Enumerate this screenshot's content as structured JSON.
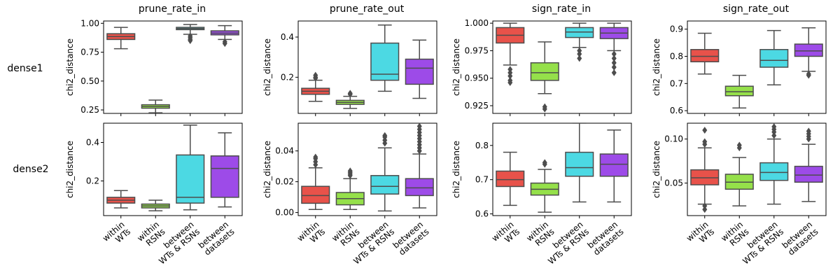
{
  "figure": {
    "row_labels": [
      "dense1",
      "dense2"
    ],
    "col_titles": [
      "prune_rate_in",
      "prune_rate_out",
      "sign_rate_in",
      "sign_rate_out"
    ],
    "ylabel": "chi2_distance",
    "categories": [
      [
        "within",
        "WTs"
      ],
      [
        "within",
        "RSNs"
      ],
      [
        "between",
        "WTs & RSNs"
      ],
      [
        "between",
        "datasets"
      ]
    ],
    "colors": [
      "#e8524a",
      "#95e04a",
      "#4cd9e3",
      "#9d4be8"
    ],
    "line_color": "#4d4d4d"
  },
  "chart_data": [
    {
      "type": "box",
      "row": "dense1",
      "col": "prune_rate_in",
      "ylim": [
        0.22,
        1.02
      ],
      "yticks": [
        0.25,
        0.5,
        0.75,
        1.0
      ],
      "yticklabels": [
        "0.25",
        "0.50",
        "0.75",
        "1.00"
      ],
      "boxes": [
        {
          "q1": 0.86,
          "median": 0.885,
          "q3": 0.91,
          "whislo": 0.78,
          "whishi": 0.965,
          "fliers": []
        },
        {
          "q1": 0.265,
          "median": 0.28,
          "q3": 0.295,
          "whislo": 0.225,
          "whishi": 0.335,
          "fliers": []
        },
        {
          "q1": 0.945,
          "median": 0.955,
          "q3": 0.965,
          "whislo": 0.905,
          "whishi": 0.99,
          "fliers": [
            0.89,
            0.875,
            0.86,
            0.85
          ]
        },
        {
          "q1": 0.9,
          "median": 0.915,
          "q3": 0.935,
          "whislo": 0.86,
          "whishi": 0.98,
          "fliers": [
            0.84,
            0.825
          ]
        }
      ]
    },
    {
      "type": "box",
      "row": "dense1",
      "col": "prune_rate_out",
      "ylim": [
        0.02,
        0.48
      ],
      "yticks": [
        0.2,
        0.4
      ],
      "yticklabels": [
        "0.2",
        "0.4"
      ],
      "boxes": [
        {
          "q1": 0.115,
          "median": 0.13,
          "q3": 0.145,
          "whislo": 0.08,
          "whishi": 0.185,
          "fliers": [
            0.195,
            0.2,
            0.21
          ]
        },
        {
          "q1": 0.065,
          "median": 0.075,
          "q3": 0.085,
          "whislo": 0.045,
          "whishi": 0.105,
          "fliers": [
            0.115,
            0.12
          ]
        },
        {
          "q1": 0.185,
          "median": 0.215,
          "q3": 0.37,
          "whislo": 0.13,
          "whishi": 0.46,
          "fliers": []
        },
        {
          "q1": 0.165,
          "median": 0.245,
          "q3": 0.29,
          "whislo": 0.095,
          "whishi": 0.385,
          "fliers": []
        }
      ]
    },
    {
      "type": "box",
      "row": "dense1",
      "col": "sign_rate_in",
      "ylim": [
        0.918,
        1.002
      ],
      "yticks": [
        0.925,
        0.95,
        0.975,
        1.0
      ],
      "yticklabels": [
        "0.925",
        "0.950",
        "0.975",
        "1.000"
      ],
      "boxes": [
        {
          "q1": 0.982,
          "median": 0.989,
          "q3": 0.996,
          "whislo": 0.962,
          "whishi": 1.0,
          "fliers": [
            0.958,
            0.955,
            0.952,
            0.948,
            0.946
          ]
        },
        {
          "q1": 0.948,
          "median": 0.955,
          "q3": 0.964,
          "whislo": 0.936,
          "whishi": 0.983,
          "fliers": [
            0.924,
            0.922
          ]
        },
        {
          "q1": 0.987,
          "median": 0.992,
          "q3": 0.996,
          "whislo": 0.978,
          "whishi": 1.0,
          "fliers": [
            0.975,
            0.972,
            0.968
          ]
        },
        {
          "q1": 0.986,
          "median": 0.991,
          "q3": 0.996,
          "whislo": 0.975,
          "whishi": 1.0,
          "fliers": [
            0.972,
            0.968,
            0.964,
            0.96,
            0.955
          ]
        }
      ]
    },
    {
      "type": "box",
      "row": "dense1",
      "col": "sign_rate_out",
      "ylim": [
        0.59,
        0.93
      ],
      "yticks": [
        0.6,
        0.7,
        0.8,
        0.9
      ],
      "yticklabels": [
        "0.6",
        "0.7",
        "0.8",
        "0.9"
      ],
      "boxes": [
        {
          "q1": 0.78,
          "median": 0.8,
          "q3": 0.825,
          "whislo": 0.735,
          "whishi": 0.885,
          "fliers": []
        },
        {
          "q1": 0.655,
          "median": 0.67,
          "q3": 0.69,
          "whislo": 0.61,
          "whishi": 0.73,
          "fliers": []
        },
        {
          "q1": 0.76,
          "median": 0.785,
          "q3": 0.825,
          "whislo": 0.695,
          "whishi": 0.895,
          "fliers": []
        },
        {
          "q1": 0.8,
          "median": 0.82,
          "q3": 0.845,
          "whislo": 0.745,
          "whishi": 0.905,
          "fliers": [
            0.735,
            0.73
          ]
        }
      ]
    },
    {
      "type": "box",
      "row": "dense2",
      "col": "prune_rate_in",
      "ylim": [
        0.02,
        0.5
      ],
      "yticks": [
        0.2,
        0.4
      ],
      "yticklabels": [
        "0.2",
        "0.4"
      ],
      "boxes": [
        {
          "q1": 0.085,
          "median": 0.1,
          "q3": 0.115,
          "whislo": 0.06,
          "whishi": 0.15,
          "fliers": []
        },
        {
          "q1": 0.06,
          "median": 0.07,
          "q3": 0.08,
          "whislo": 0.045,
          "whishi": 0.1,
          "fliers": []
        },
        {
          "q1": 0.085,
          "median": 0.115,
          "q3": 0.335,
          "whislo": 0.05,
          "whishi": 0.49,
          "fliers": []
        },
        {
          "q1": 0.115,
          "median": 0.265,
          "q3": 0.33,
          "whislo": 0.065,
          "whishi": 0.45,
          "fliers": []
        }
      ]
    },
    {
      "type": "box",
      "row": "dense2",
      "col": "prune_rate_out",
      "ylim": [
        -0.002,
        0.058
      ],
      "yticks": [
        0.0,
        0.02,
        0.04
      ],
      "yticklabels": [
        "0.00",
        "0.02",
        "0.04"
      ],
      "boxes": [
        {
          "q1": 0.006,
          "median": 0.011,
          "q3": 0.017,
          "whislo": 0.002,
          "whishi": 0.029,
          "fliers": [
            0.031,
            0.033,
            0.035,
            0.036
          ]
        },
        {
          "q1": 0.005,
          "median": 0.009,
          "q3": 0.013,
          "whislo": 0.002,
          "whishi": 0.022,
          "fliers": [
            0.024,
            0.025,
            0.026,
            0.027
          ]
        },
        {
          "q1": 0.012,
          "median": 0.017,
          "q3": 0.024,
          "whislo": 0.001,
          "whishi": 0.042,
          "fliers": [
            0.045,
            0.047,
            0.049,
            0.05
          ]
        },
        {
          "q1": 0.011,
          "median": 0.016,
          "q3": 0.022,
          "whislo": 0.003,
          "whishi": 0.038,
          "fliers": [
            0.04,
            0.042,
            0.044,
            0.046,
            0.048,
            0.05,
            0.052,
            0.054,
            0.056
          ]
        }
      ]
    },
    {
      "type": "box",
      "row": "dense2",
      "col": "sign_rate_in",
      "ylim": [
        0.595,
        0.865
      ],
      "yticks": [
        0.6,
        0.7,
        0.8
      ],
      "yticklabels": [
        "0.6",
        "0.7",
        "0.8"
      ],
      "boxes": [
        {
          "q1": 0.68,
          "median": 0.7,
          "q3": 0.725,
          "whislo": 0.625,
          "whishi": 0.78,
          "fliers": []
        },
        {
          "q1": 0.655,
          "median": 0.672,
          "q3": 0.69,
          "whislo": 0.605,
          "whishi": 0.73,
          "fliers": [
            0.745,
            0.75
          ]
        },
        {
          "q1": 0.71,
          "median": 0.735,
          "q3": 0.78,
          "whislo": 0.635,
          "whishi": 0.865,
          "fliers": []
        },
        {
          "q1": 0.71,
          "median": 0.745,
          "q3": 0.775,
          "whislo": 0.635,
          "whishi": 0.845,
          "fliers": []
        }
      ]
    },
    {
      "type": "box",
      "row": "dense2",
      "col": "sign_rate_out",
      "ylim": [
        0.013,
        0.118
      ],
      "yticks": [
        0.05,
        0.1
      ],
      "yticklabels": [
        "0.05",
        "0.10"
      ],
      "boxes": [
        {
          "q1": 0.048,
          "median": 0.056,
          "q3": 0.065,
          "whislo": 0.026,
          "whishi": 0.09,
          "fliers": [
            0.02,
            0.024,
            0.094,
            0.097,
            0.11
          ]
        },
        {
          "q1": 0.043,
          "median": 0.051,
          "q3": 0.06,
          "whislo": 0.024,
          "whishi": 0.079,
          "fliers": [
            0.09,
            0.093
          ]
        },
        {
          "q1": 0.053,
          "median": 0.062,
          "q3": 0.073,
          "whislo": 0.026,
          "whishi": 0.1,
          "fliers": [
            0.104,
            0.108,
            0.111,
            0.114
          ]
        },
        {
          "q1": 0.051,
          "median": 0.059,
          "q3": 0.069,
          "whislo": 0.029,
          "whishi": 0.094,
          "fliers": [
            0.1,
            0.103,
            0.106,
            0.109
          ]
        }
      ]
    }
  ]
}
